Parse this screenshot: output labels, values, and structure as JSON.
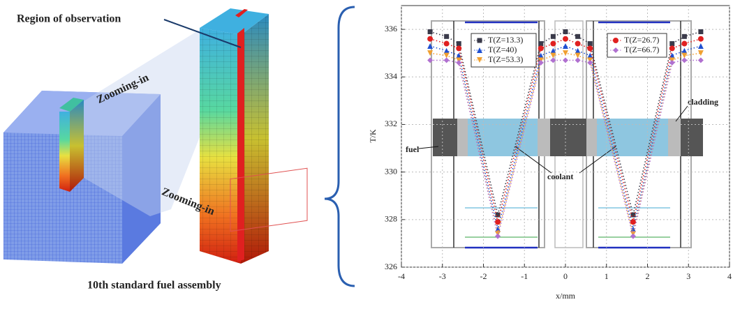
{
  "figure": {
    "region_label": "Region of observation",
    "zoom_labels": [
      "Zooming-in",
      "Zooming-in"
    ],
    "caption": "10th standard fuel assembly"
  },
  "chart_data": {
    "type": "line",
    "x_label": "x/mm",
    "y_label": "T/K",
    "x": [
      -3.3,
      -2.9,
      -2.6,
      -1.65,
      -0.6,
      -0.3,
      0,
      0.3,
      0.6,
      1.65,
      2.6,
      2.9,
      3.3
    ],
    "series": [
      {
        "name": "T(Z=13.3)",
        "color": "#3a3a4a",
        "marker": "square",
        "values": [
          335.9,
          335.7,
          335.4,
          328.2,
          335.4,
          335.7,
          335.9,
          335.7,
          335.4,
          328.2,
          335.4,
          335.7,
          335.9
        ]
      },
      {
        "name": "T(Z=40)",
        "color": "#1f4fd0",
        "marker": "triangle",
        "values": [
          335.3,
          335.1,
          334.9,
          327.6,
          334.9,
          335.1,
          335.3,
          335.1,
          334.9,
          327.6,
          334.9,
          335.1,
          335.3
        ]
      },
      {
        "name": "T(Z=53.3)",
        "color": "#f0a030",
        "marker": "triangle-down",
        "values": [
          335.0,
          334.9,
          334.7,
          327.4,
          334.7,
          334.9,
          335.0,
          334.9,
          334.7,
          327.4,
          334.7,
          334.9,
          335.0
        ]
      },
      {
        "name": "T(Z=26.7)",
        "color": "#e02020",
        "marker": "circle",
        "values": [
          335.6,
          335.4,
          335.2,
          327.9,
          335.2,
          335.4,
          335.6,
          335.4,
          335.2,
          327.9,
          335.2,
          335.4,
          335.6
        ]
      },
      {
        "name": "T(Z=66.7)",
        "color": "#b070d0",
        "marker": "diamond",
        "values": [
          334.7,
          334.7,
          334.6,
          327.3,
          334.6,
          334.7,
          334.7,
          334.7,
          334.6,
          327.3,
          334.6,
          334.7,
          334.7
        ]
      }
    ],
    "xlim": [
      -4,
      4
    ],
    "xticks": [
      -4,
      -3,
      -2,
      -1,
      0,
      1,
      2,
      3,
      4
    ],
    "ylim": [
      326,
      337
    ],
    "yticks": [
      326,
      328,
      330,
      332,
      334,
      336
    ],
    "grid": true,
    "annotations": [
      "fuel",
      "coolant",
      "cladding"
    ]
  }
}
